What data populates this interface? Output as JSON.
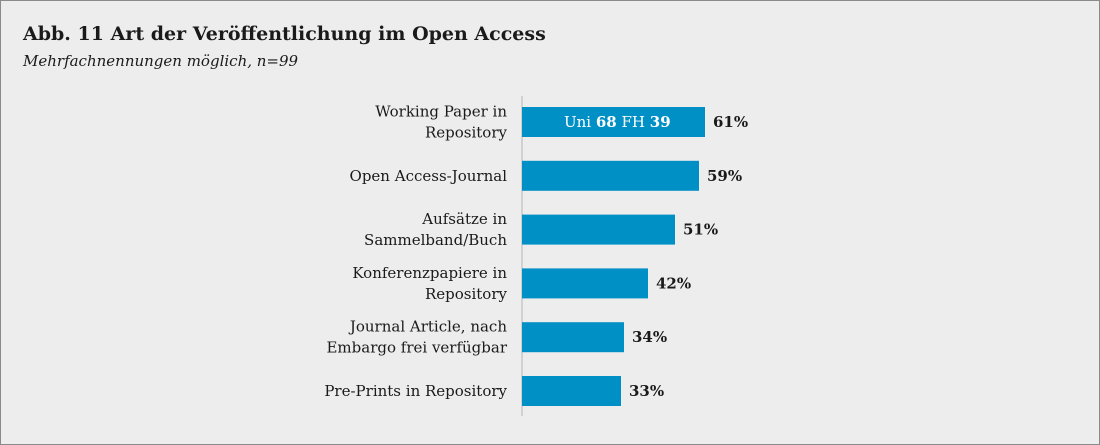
{
  "chart_data": {
    "type": "bar",
    "orientation": "horizontal",
    "title": "Abb. 11 Art der Veröffentlichung im Open Access",
    "subtitle": "Mehrfachnennungen möglich, n=99",
    "categories": [
      [
        "Working Paper in",
        "Repository"
      ],
      [
        "Open Access-Journal"
      ],
      [
        "Aufsätze in",
        "Sammelband/Buch"
      ],
      [
        "Konferenzpapiere in",
        "Repository"
      ],
      [
        "Journal Article, nach",
        "Embargo frei verfügbar"
      ],
      [
        "Pre-Prints in Repository"
      ]
    ],
    "values": [
      61,
      59,
      51,
      42,
      34,
      33
    ],
    "value_labels": [
      "61%",
      "59%",
      "51%",
      "42%",
      "34%",
      "33%"
    ],
    "xlim": [
      0,
      100
    ],
    "grid": false,
    "bar_color": "#0090c5",
    "annotation": {
      "bar_index": 0,
      "parts": [
        {
          "label": "Uni",
          "value": "68"
        },
        {
          "label": "FH",
          "value": "39"
        }
      ]
    }
  }
}
